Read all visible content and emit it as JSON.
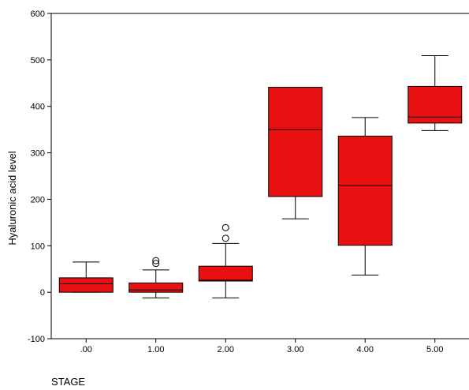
{
  "chart_data": {
    "type": "boxplot",
    "xlabel": "STAGE",
    "ylabel": "Hyaluronic acid level",
    "ylim": [
      -100,
      600
    ],
    "yticks": [
      -100,
      0,
      100,
      200,
      300,
      400,
      500,
      600
    ],
    "grid": false,
    "legend": "none",
    "box_color": "#e81010",
    "categories": [
      ".00",
      "1.00",
      "2.00",
      "3.00",
      "4.00",
      "5.00"
    ],
    "boxes": [
      {
        "category": ".00",
        "whisker_low": 0,
        "q1": 0,
        "median": 18,
        "q3": 31,
        "whisker_high": 65,
        "outliers": []
      },
      {
        "category": "1.00",
        "whisker_low": -12,
        "q1": 0,
        "median": 5,
        "q3": 20,
        "whisker_high": 48,
        "outliers": [
          62,
          68
        ]
      },
      {
        "category": "2.00",
        "whisker_low": -12,
        "q1": 24,
        "median": 26,
        "q3": 56,
        "whisker_high": 105,
        "outliers": [
          116,
          139
        ]
      },
      {
        "category": "3.00",
        "whisker_low": 158,
        "q1": 206,
        "median": 350,
        "q3": 441,
        "whisker_high": 441,
        "outliers": []
      },
      {
        "category": "4.00",
        "whisker_low": 37,
        "q1": 101,
        "median": 230,
        "q3": 336,
        "whisker_high": 376,
        "outliers": []
      },
      {
        "category": "5.00",
        "whisker_low": 348,
        "q1": 364,
        "median": 377,
        "q3": 443,
        "whisker_high": 509,
        "outliers": []
      }
    ]
  }
}
